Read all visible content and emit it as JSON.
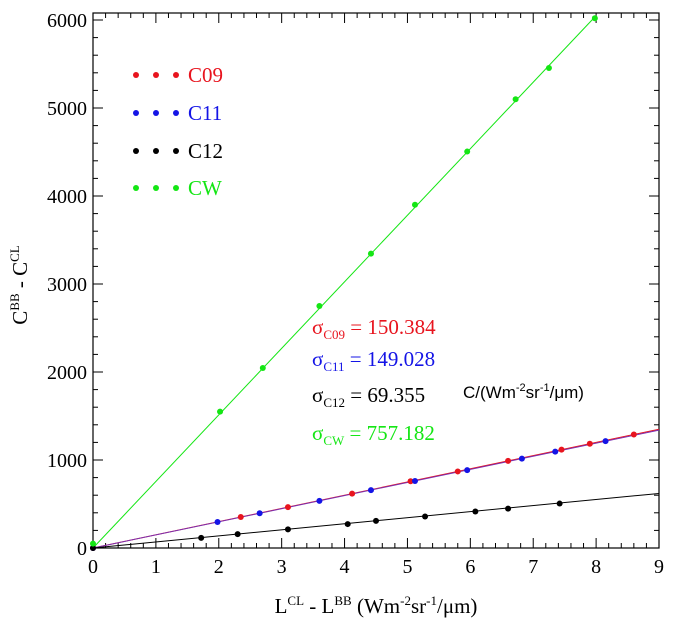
{
  "chart_data": {
    "type": "scatter",
    "xlim": [
      0,
      9
    ],
    "ylim": [
      0,
      6000
    ],
    "x_ticks": [
      "0",
      "1",
      "2",
      "3",
      "4",
      "5",
      "6",
      "7",
      "8",
      "9"
    ],
    "y_ticks": [
      "0",
      "1000",
      "2000",
      "3000",
      "4000",
      "5000",
      "6000"
    ],
    "xlabel": {
      "base1": "L",
      "sup1": "CL",
      "mid": " - L",
      "sup2": "BB",
      "unit_start": " (Wm",
      "sup3": "-2",
      "unit_mid": "sr",
      "sup4": "-1",
      "unit_end": "/μm)"
    },
    "ylabel": {
      "base1": "C",
      "sup1": "BB",
      "mid": " - C",
      "sup2": "CL"
    },
    "legend_placement": "top-left",
    "grid": false,
    "colors": {
      "C09": "#e8141e",
      "C11": "#1414e6",
      "C12": "#000000",
      "CW": "#14e614",
      "fit_C11": "#7a2fb0"
    },
    "series": [
      {
        "name": "C09",
        "color": "#e8141e",
        "x": [
          0.0,
          2.35,
          3.1,
          4.12,
          5.05,
          5.8,
          6.6,
          7.45,
          7.9,
          8.6
        ],
        "y": [
          0,
          352,
          465,
          618,
          758,
          870,
          990,
          1118,
          1185,
          1290
        ],
        "fit": {
          "x": [
            0,
            9
          ],
          "y": [
            0,
            1350
          ]
        }
      },
      {
        "name": "C11",
        "color": "#1414e6",
        "x": [
          0.0,
          1.98,
          2.65,
          3.6,
          4.42,
          5.12,
          5.95,
          6.82,
          7.35,
          8.15
        ],
        "y": [
          0,
          295,
          395,
          535,
          658,
          762,
          885,
          1015,
          1095,
          1215
        ],
        "fit": {
          "x": [
            0,
            9
          ],
          "y": [
            0,
            1340
          ]
        }
      },
      {
        "name": "C12",
        "color": "#000000",
        "x": [
          0.0,
          1.72,
          2.3,
          3.1,
          4.05,
          4.5,
          5.28,
          6.08,
          6.6,
          7.42
        ],
        "y": [
          0,
          115,
          158,
          212,
          272,
          308,
          358,
          415,
          448,
          505
        ],
        "fit": {
          "x": [
            0,
            9
          ],
          "y": [
            0,
            620
          ]
        }
      },
      {
        "name": "CW",
        "color": "#14e614",
        "x": [
          0.0,
          2.02,
          2.7,
          3.6,
          4.42,
          5.12,
          5.95,
          6.72,
          7.25,
          7.98
        ],
        "y": [
          50,
          1550,
          2045,
          2750,
          3345,
          3900,
          4505,
          5100,
          5455,
          6020
        ],
        "fit": {
          "x": [
            0,
            8.0
          ],
          "y": [
            0,
            6050
          ]
        }
      }
    ],
    "sigma_labels": [
      {
        "name": "C09",
        "sym": "σ",
        "sub": "C09",
        "value": " = 150.384",
        "color": "#e8141e"
      },
      {
        "name": "C11",
        "sym": "σ",
        "sub": "C11",
        "value": " = 149.028",
        "color": "#1414e6"
      },
      {
        "name": "C12",
        "sym": "σ",
        "sub": "C12",
        "value": " = 69.355",
        "color": "#000000"
      },
      {
        "name": "CW",
        "sym": "σ",
        "sub": "CW",
        "value": " = 757.182",
        "color": "#14e614"
      }
    ],
    "units_note": {
      "start": "C/(Wm",
      "sup1": "-2",
      "mid": "sr",
      "sup2": "-1",
      "end": "/μm)"
    }
  }
}
